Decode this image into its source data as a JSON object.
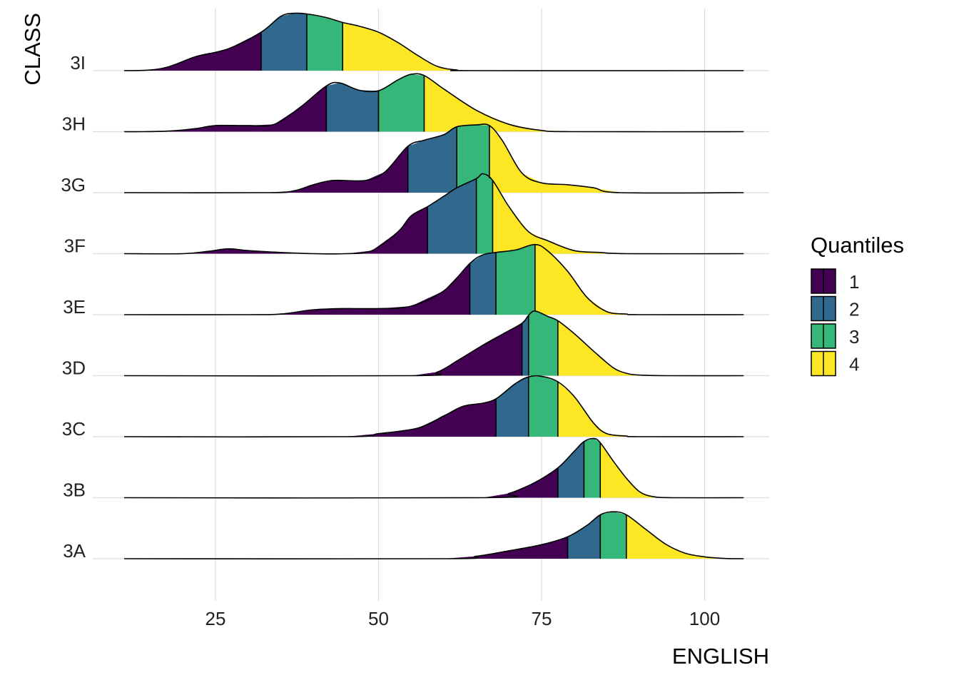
{
  "chart_data": {
    "type": "ridgeline",
    "xlabel": "ENGLISH",
    "ylabel": "CLASS",
    "xlim": [
      11,
      106
    ],
    "x_ticks": [
      25,
      50,
      75,
      100
    ],
    "grid": true,
    "legend": {
      "title": "Quantiles",
      "position": "right",
      "labels": [
        "1",
        "2",
        "3",
        "4"
      ]
    },
    "colors": {
      "1": "#440154",
      "2": "#31688E",
      "3": "#35B779",
      "4": "#FDE725"
    },
    "categories": [
      "3A",
      "3B",
      "3C",
      "3D",
      "3E",
      "3F",
      "3G",
      "3H",
      "3I"
    ],
    "series": [
      {
        "name": "3A",
        "quartiles": [
          79,
          84,
          88
        ],
        "density": [
          [
            11,
            0
          ],
          [
            60,
            0
          ],
          [
            65,
            0.04
          ],
          [
            70,
            0.13
          ],
          [
            75,
            0.23
          ],
          [
            79,
            0.36
          ],
          [
            82,
            0.55
          ],
          [
            84,
            0.72
          ],
          [
            86,
            0.77
          ],
          [
            88,
            0.72
          ],
          [
            91,
            0.48
          ],
          [
            94,
            0.24
          ],
          [
            97,
            0.09
          ],
          [
            100,
            0.03
          ],
          [
            103,
            0.005
          ],
          [
            106,
            0
          ]
        ]
      },
      {
        "name": "3B",
        "quartiles": [
          77.5,
          81.5,
          84
        ],
        "density": [
          [
            11,
            0
          ],
          [
            66,
            0
          ],
          [
            70,
            0.07
          ],
          [
            74,
            0.25
          ],
          [
            77.5,
            0.49
          ],
          [
            80,
            0.76
          ],
          [
            81.5,
            0.92
          ],
          [
            83,
            0.97
          ],
          [
            84,
            0.9
          ],
          [
            86,
            0.6
          ],
          [
            88,
            0.32
          ],
          [
            90,
            0.1
          ],
          [
            92,
            0.02
          ],
          [
            95,
            0
          ],
          [
            106,
            0
          ]
        ]
      },
      {
        "name": "3C",
        "quartiles": [
          68,
          73,
          77.5
        ],
        "density": [
          [
            11,
            0
          ],
          [
            45,
            0
          ],
          [
            50,
            0.05
          ],
          [
            56,
            0.14
          ],
          [
            60,
            0.34
          ],
          [
            63,
            0.5
          ],
          [
            66,
            0.55
          ],
          [
            68,
            0.62
          ],
          [
            71,
            0.87
          ],
          [
            73,
            0.98
          ],
          [
            75,
            0.99
          ],
          [
            77.5,
            0.9
          ],
          [
            80,
            0.66
          ],
          [
            83,
            0.22
          ],
          [
            85,
            0.05
          ],
          [
            88,
            0.01
          ],
          [
            90,
            0
          ],
          [
            106,
            0
          ]
        ]
      },
      {
        "name": "3D",
        "quartiles": [
          72,
          73,
          77.5
        ],
        "density": [
          [
            11,
            0
          ],
          [
            55,
            0
          ],
          [
            59,
            0.06
          ],
          [
            62,
            0.24
          ],
          [
            66,
            0.5
          ],
          [
            69,
            0.68
          ],
          [
            72,
            0.86
          ],
          [
            73,
            0.99
          ],
          [
            74,
            1.06
          ],
          [
            76,
            0.97
          ],
          [
            77.5,
            0.9
          ],
          [
            80,
            0.69
          ],
          [
            83,
            0.4
          ],
          [
            86,
            0.13
          ],
          [
            88,
            0.04
          ],
          [
            90,
            0.01
          ],
          [
            94,
            0
          ],
          [
            106,
            0
          ]
        ]
      },
      {
        "name": "3E",
        "quartiles": [
          64,
          68,
          74
        ],
        "density": [
          [
            11,
            0
          ],
          [
            30,
            0
          ],
          [
            35,
            0.01
          ],
          [
            40,
            0.08
          ],
          [
            45,
            0.1
          ],
          [
            50,
            0.1
          ],
          [
            55,
            0.14
          ],
          [
            60,
            0.39
          ],
          [
            64,
            0.84
          ],
          [
            66,
            0.98
          ],
          [
            68,
            1.02
          ],
          [
            71,
            1.06
          ],
          [
            74,
            1.15
          ],
          [
            76,
            1.04
          ],
          [
            79,
            0.71
          ],
          [
            82,
            0.28
          ],
          [
            85,
            0.05
          ],
          [
            88,
            0.01
          ],
          [
            90,
            0
          ],
          [
            106,
            0
          ]
        ]
      },
      {
        "name": "3F",
        "quartiles": [
          57.5,
          65,
          67.5
        ],
        "density": [
          [
            11,
            0
          ],
          [
            20,
            0
          ],
          [
            24,
            0.04
          ],
          [
            27,
            0.08
          ],
          [
            30,
            0.05
          ],
          [
            35,
            0.02
          ],
          [
            40,
            0
          ],
          [
            45,
            0
          ],
          [
            49,
            0.05
          ],
          [
            53,
            0.36
          ],
          [
            55,
            0.62
          ],
          [
            57.5,
            0.77
          ],
          [
            60,
            0.94
          ],
          [
            62,
            1.08
          ],
          [
            65,
            1.23
          ],
          [
            66,
            1.31
          ],
          [
            67.5,
            1.2
          ],
          [
            70,
            0.77
          ],
          [
            73,
            0.36
          ],
          [
            76,
            0.21
          ],
          [
            80,
            0.05
          ],
          [
            84,
            0.02
          ],
          [
            88,
            0
          ],
          [
            106,
            0
          ]
        ]
      },
      {
        "name": "3G",
        "quartiles": [
          54.5,
          62,
          67
        ],
        "density": [
          [
            11,
            0
          ],
          [
            33,
            0
          ],
          [
            37,
            0.03
          ],
          [
            40,
            0.13
          ],
          [
            43,
            0.2
          ],
          [
            48,
            0.2
          ],
          [
            51,
            0.34
          ],
          [
            54.5,
            0.76
          ],
          [
            57,
            0.86
          ],
          [
            60,
            0.95
          ],
          [
            62,
            1.08
          ],
          [
            65,
            1.11
          ],
          [
            67,
            1.1
          ],
          [
            69,
            0.85
          ],
          [
            72,
            0.32
          ],
          [
            75,
            0.16
          ],
          [
            79,
            0.13
          ],
          [
            83,
            0.08
          ],
          [
            87,
            0
          ],
          [
            106,
            0
          ]
        ]
      },
      {
        "name": "3H",
        "quartiles": [
          42,
          50,
          57
        ],
        "density": [
          [
            11,
            0
          ],
          [
            14,
            0
          ],
          [
            18,
            0.01
          ],
          [
            22,
            0.05
          ],
          [
            25,
            0.1
          ],
          [
            30,
            0.1
          ],
          [
            34,
            0.12
          ],
          [
            38,
            0.4
          ],
          [
            42,
            0.75
          ],
          [
            44,
            0.8
          ],
          [
            47,
            0.68
          ],
          [
            50,
            0.67
          ],
          [
            53,
            0.85
          ],
          [
            55,
            0.94
          ],
          [
            57,
            0.92
          ],
          [
            60,
            0.7
          ],
          [
            65,
            0.35
          ],
          [
            70,
            0.12
          ],
          [
            75,
            0.02
          ],
          [
            80,
            0
          ],
          [
            106,
            0
          ]
        ]
      },
      {
        "name": "3I",
        "quartiles": [
          32,
          39,
          44.5
        ],
        "density": [
          [
            11,
            0
          ],
          [
            15,
            0.01
          ],
          [
            18,
            0.07
          ],
          [
            22,
            0.23
          ],
          [
            27,
            0.36
          ],
          [
            32,
            0.63
          ],
          [
            35,
            0.89
          ],
          [
            37,
            0.94
          ],
          [
            39,
            0.93
          ],
          [
            42,
            0.87
          ],
          [
            44.5,
            0.79
          ],
          [
            47,
            0.73
          ],
          [
            50,
            0.63
          ],
          [
            53,
            0.46
          ],
          [
            56,
            0.25
          ],
          [
            59,
            0.07
          ],
          [
            62,
            0.01
          ],
          [
            65,
            0
          ],
          [
            106,
            0
          ]
        ]
      }
    ]
  }
}
